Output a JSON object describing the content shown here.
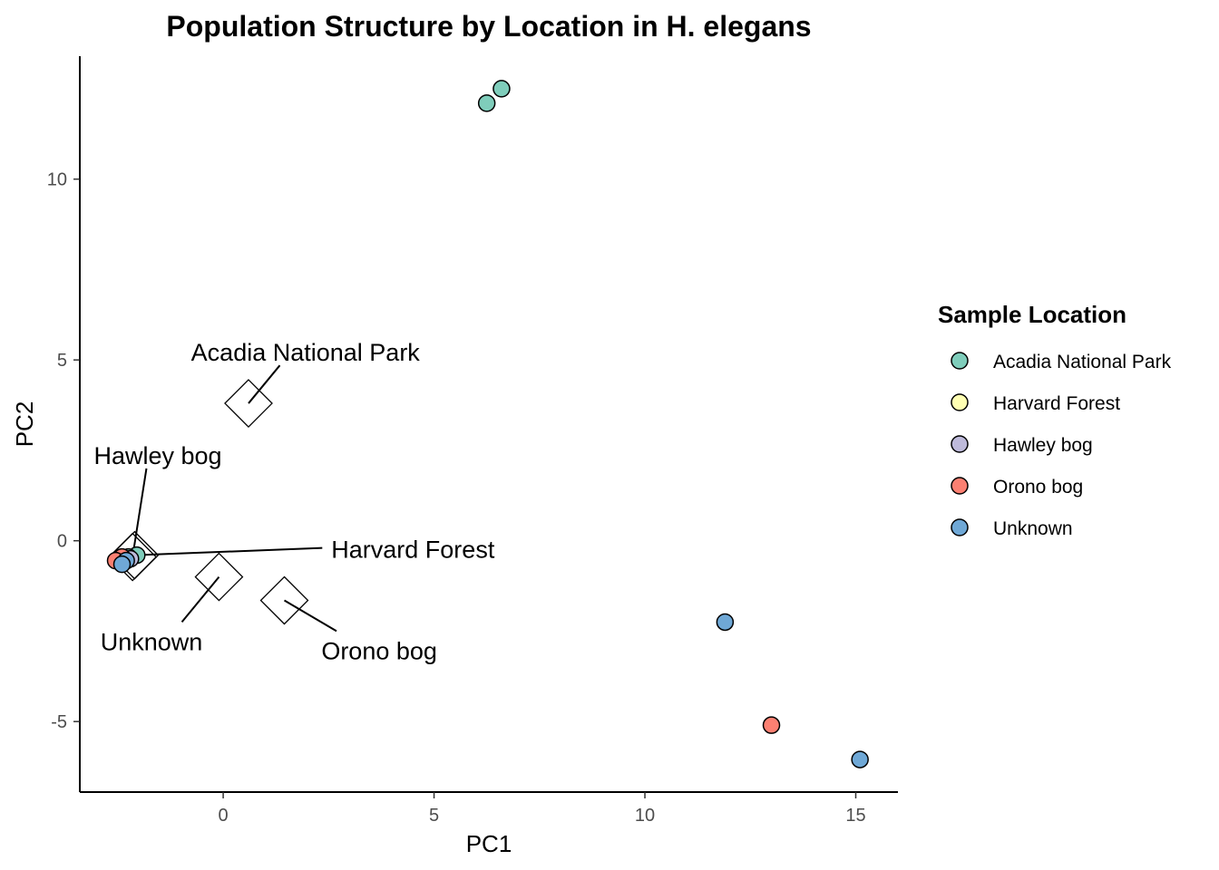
{
  "chart_data": {
    "type": "scatter",
    "title": "Population Structure by Location in H. elegans",
    "xlabel": "PC1",
    "ylabel": "PC2",
    "xlim": [
      -3.4,
      16.0
    ],
    "ylim": [
      -6.95,
      13.4
    ],
    "xticks": [
      0,
      5,
      10,
      15
    ],
    "yticks": [
      -5,
      0,
      5,
      10
    ],
    "grid": false,
    "legend": {
      "title": "Sample Location",
      "placement": "right",
      "entries": [
        {
          "name": "Acadia National Park",
          "color": "#7FCDBB"
        },
        {
          "name": "Harvard Forest",
          "color": "#FFFFB3"
        },
        {
          "name": "Hawley bog",
          "color": "#BEBADA"
        },
        {
          "name": "Orono bog",
          "color": "#FB8072"
        },
        {
          "name": "Unknown",
          "color": "#6FA8D6"
        }
      ]
    },
    "series": [
      {
        "name": "Acadia National Park",
        "color": "#7FCDBB",
        "points": [
          [
            6.6,
            12.5
          ],
          [
            6.25,
            12.1
          ],
          [
            -2.05,
            -0.4
          ],
          [
            -2.25,
            -0.45
          ]
        ]
      },
      {
        "name": "Harvard Forest",
        "color": "#FFFFB3",
        "points": [
          [
            -2.45,
            -0.5
          ],
          [
            -2.3,
            -0.55
          ]
        ]
      },
      {
        "name": "Hawley bog",
        "color": "#BEBADA",
        "points": [
          [
            -2.4,
            -0.6
          ],
          [
            -2.2,
            -0.5
          ]
        ]
      },
      {
        "name": "Orono bog",
        "color": "#FB8072",
        "points": [
          [
            13.0,
            -5.1
          ],
          [
            -2.4,
            -0.45
          ],
          [
            -2.55,
            -0.55
          ]
        ]
      },
      {
        "name": "Unknown",
        "color": "#6FA8D6",
        "points": [
          [
            11.9,
            -2.25
          ],
          [
            15.1,
            -6.05
          ],
          [
            -2.3,
            -0.55
          ],
          [
            -2.4,
            -0.65
          ]
        ]
      }
    ],
    "centroids": [
      {
        "name": "Acadia National Park",
        "x": 0.6,
        "y": 3.8,
        "label_x": 1.95,
        "label_y": 5.2
      },
      {
        "name": "Hawley bog",
        "x": -2.15,
        "y": -0.45,
        "label_x": -1.55,
        "label_y": 2.35
      },
      {
        "name": "Harvard Forest",
        "x": -2.1,
        "y": -0.4,
        "label_x": 4.5,
        "label_y": -0.25
      },
      {
        "name": "Unknown",
        "x": -0.1,
        "y": -1.0,
        "label_x": -1.7,
        "label_y": -2.8
      },
      {
        "name": "Orono bog",
        "x": 1.45,
        "y": -1.65,
        "label_x": 3.7,
        "label_y": -3.05
      }
    ]
  }
}
